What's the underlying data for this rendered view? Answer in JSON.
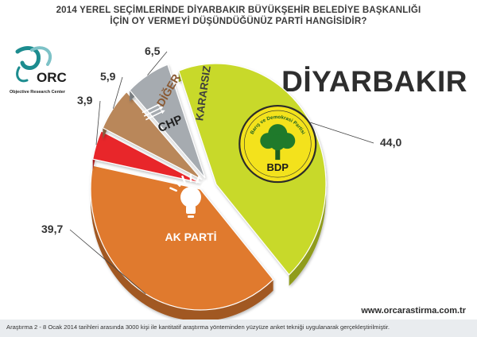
{
  "header": {
    "line1": "2014 YEREL SEÇİMLERİNDE DİYARBAKIR BÜYÜKŞEHİR BELEDİYE BAŞKANLIĞI",
    "line2": "İÇİN OY VERMEYİ DÜŞÜNDÜĞÜNÜZ PARTİ HANGİSİDİR?"
  },
  "logo": {
    "text": "ORC",
    "caption": "Objective Research Center",
    "icon": "orc-swirl-logo"
  },
  "city_label": "DİYARBAKIR",
  "website": "www.orcarastirma.com.tr",
  "footer_note": "Araştırma 2 - 8 Ocak 2014 tarihleri arasında 3000 kişi ile kantitatif araştırma yönteminden yüzyüze anket tekniği uygulanarak gerçekleştirilmiştir.",
  "chart_data": {
    "type": "pie",
    "title": "",
    "slices": [
      {
        "label": "BDP",
        "value": 44.0,
        "display": "44,0",
        "color": "#c8d92b",
        "logo": "bdp-tree-logo",
        "logo_text": "Barış ve Demokrasi Partisi"
      },
      {
        "label": "AK PARTİ",
        "value": 39.7,
        "display": "39,7",
        "color": "#e07a2e",
        "logo": "lightbulb-logo"
      },
      {
        "label": "CHP",
        "value": 3.9,
        "display": "3,9",
        "color": "#e8262b",
        "logo": "six-arrows-logo"
      },
      {
        "label": "DİĞER",
        "value": 5.9,
        "display": "5,9",
        "color": "#b9875a"
      },
      {
        "label": "KARARSIZ",
        "value": 6.5,
        "display": "6,5",
        "color": "#a6abb0"
      }
    ]
  }
}
